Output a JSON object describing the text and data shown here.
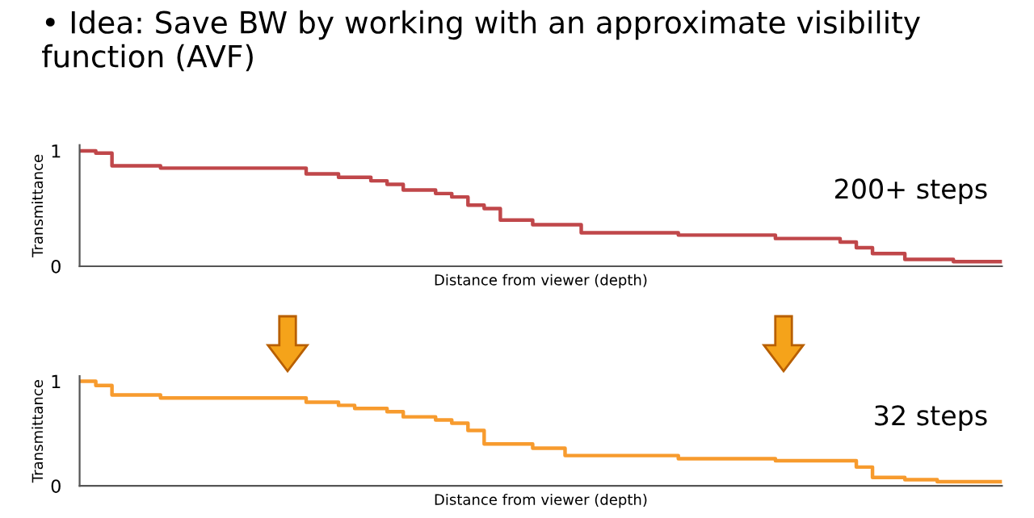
{
  "chart_data": [
    {
      "type": "step",
      "title": "• Idea: Save BW by working with an approximate visibility function (AVF)",
      "xlabel": "Distance from viewer (depth)",
      "ylabel": "Transmittance",
      "annotations": [
        "200+ steps"
      ],
      "categories": [
        null,
        null,
        null,
        null,
        null,
        null,
        null,
        null,
        null,
        null,
        null,
        null,
        null,
        null,
        null,
        null,
        null,
        null,
        null,
        null,
        null,
        null,
        null,
        null,
        null,
        null,
        null,
        null,
        null,
        null,
        null,
        null,
        null,
        null,
        null,
        null,
        null,
        null,
        null,
        null,
        null,
        null,
        null,
        null,
        null,
        null,
        null,
        null,
        null,
        null,
        null,
        null,
        null,
        null,
        null,
        null,
        null,
        null
      ],
      "series": [
        {
          "color": "#c0474a",
          "values": [
            1.0,
            0.98,
            0.87,
            0.87,
            0.87,
            0.85,
            0.85,
            0.85,
            0.85,
            0.85,
            0.85,
            0.85,
            0.85,
            0.85,
            0.8,
            0.8,
            0.77,
            0.77,
            0.74,
            0.71,
            0.66,
            0.66,
            0.63,
            0.6,
            0.53,
            0.5,
            0.4,
            0.4,
            0.36,
            0.36,
            0.36,
            0.29,
            0.29,
            0.29,
            0.29,
            0.29,
            0.29,
            0.27,
            0.27,
            0.27,
            0.27,
            0.27,
            0.27,
            0.24,
            0.24,
            0.24,
            0.24,
            0.21,
            0.16,
            0.11,
            0.11,
            0.06,
            0.06,
            0.06,
            0.04,
            0.04,
            0.04,
            0.04
          ]
        }
      ],
      "ylim": [
        0,
        1.05
      ],
      "yticks": [
        0,
        1
      ],
      "grid": false,
      "legend": false
    },
    {
      "type": "step",
      "xlabel": "Distance from viewer (depth)",
      "ylabel": "Transmittance",
      "annotations": [
        "32 steps"
      ],
      "categories": [
        null,
        null,
        null,
        null,
        null,
        null,
        null,
        null,
        null,
        null,
        null,
        null,
        null,
        null,
        null,
        null,
        null,
        null,
        null,
        null,
        null,
        null,
        null,
        null,
        null,
        null,
        null,
        null,
        null,
        null,
        null,
        null,
        null,
        null,
        null,
        null,
        null,
        null,
        null,
        null,
        null,
        null,
        null,
        null,
        null,
        null,
        null,
        null,
        null,
        null,
        null,
        null,
        null,
        null,
        null,
        null,
        null,
        null
      ],
      "series": [
        {
          "color": "#f79b2e",
          "values": [
            1.0,
            0.96,
            0.87,
            0.87,
            0.87,
            0.84,
            0.84,
            0.84,
            0.84,
            0.84,
            0.84,
            0.84,
            0.84,
            0.84,
            0.8,
            0.8,
            0.77,
            0.74,
            0.74,
            0.71,
            0.66,
            0.66,
            0.63,
            0.6,
            0.53,
            0.4,
            0.4,
            0.4,
            0.36,
            0.36,
            0.29,
            0.29,
            0.29,
            0.29,
            0.29,
            0.29,
            0.29,
            0.26,
            0.26,
            0.26,
            0.26,
            0.26,
            0.26,
            0.24,
            0.24,
            0.24,
            0.24,
            0.24,
            0.18,
            0.08,
            0.08,
            0.06,
            0.06,
            0.04,
            0.04,
            0.04,
            0.04,
            0.04
          ]
        }
      ],
      "ylim": [
        0,
        1.05
      ],
      "yticks": [
        0,
        1
      ],
      "grid": false,
      "legend": false
    }
  ]
}
